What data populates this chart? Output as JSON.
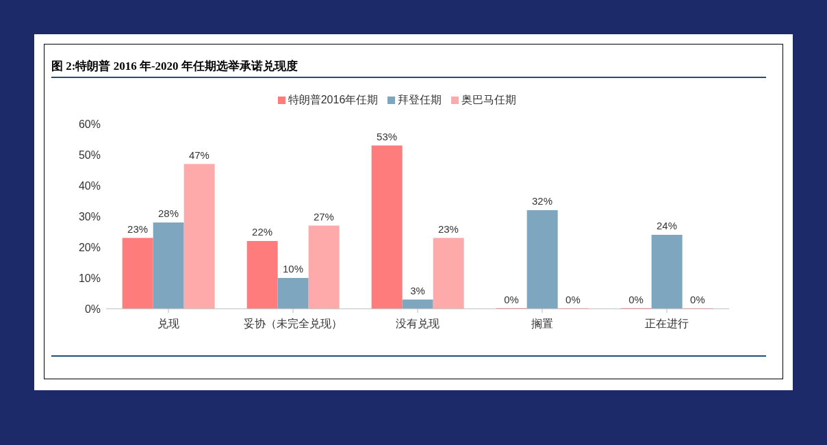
{
  "chart_data": {
    "type": "bar",
    "title": "图 2:特朗普 2016 年-2020 年任期选举承诺兑现度",
    "categories": [
      "兑现",
      "妥协（未完全兑现）",
      "没有兑现",
      "搁置",
      "正在进行"
    ],
    "series": [
      {
        "name": "特朗普2016年任期",
        "color": "#ff7c7c",
        "values": [
          23,
          22,
          53,
          0,
          0
        ],
        "value_labels": [
          "23%",
          "22%",
          "53%",
          "0%",
          "0%"
        ]
      },
      {
        "name": "拜登任期",
        "color": "#7fa6bf",
        "values": [
          28,
          10,
          3,
          32,
          24
        ],
        "value_labels": [
          "28%",
          "10%",
          "3%",
          "32%",
          "24%"
        ]
      },
      {
        "name": "奥巴马任期",
        "color": "#ffaaaa",
        "values": [
          47,
          27,
          23,
          0,
          0
        ],
        "value_labels": [
          "47%",
          "27%",
          "23%",
          "0%",
          "0%"
        ]
      }
    ],
    "ylim": [
      0,
      60
    ],
    "yticks": [
      {
        "value": 0,
        "label": "0%"
      },
      {
        "value": 10,
        "label": "10%"
      },
      {
        "value": 20,
        "label": "20%"
      },
      {
        "value": 30,
        "label": "30%"
      },
      {
        "value": 40,
        "label": "40%"
      },
      {
        "value": 50,
        "label": "50%"
      },
      {
        "value": 60,
        "label": "60%"
      }
    ],
    "grid": false,
    "legend": "top"
  }
}
